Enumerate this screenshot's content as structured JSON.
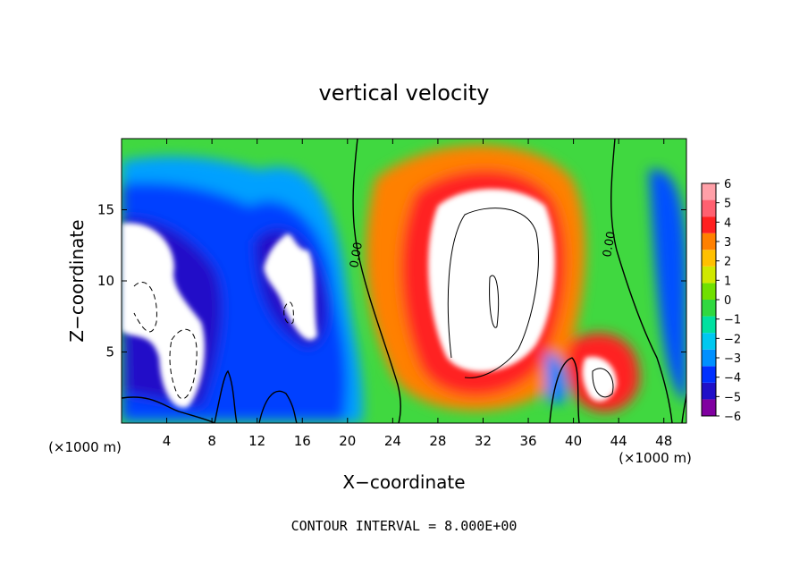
{
  "chart_data": {
    "type": "heatmap",
    "title": "vertical velocity",
    "xlabel": "X−coordinate",
    "ylabel": "Z−coordinate",
    "x_unit_label": "(×1000 m)",
    "xlim": [
      0,
      50
    ],
    "ylim": [
      0,
      20
    ],
    "x_ticks": [
      4,
      8,
      12,
      16,
      20,
      24,
      28,
      32,
      36,
      40,
      44,
      48
    ],
    "y_ticks": [
      5,
      10,
      15
    ],
    "colorbar": {
      "levels": [
        -6,
        -5,
        -4,
        -3,
        -2,
        -1,
        0,
        1,
        2,
        3,
        4,
        5,
        6
      ],
      "labels": [
        "6",
        "5",
        "4",
        "3",
        "2",
        "1",
        "0",
        "−1",
        "−2",
        "−3",
        "−4",
        "−5",
        "−6"
      ],
      "colors": [
        "#8000a0",
        "#2010c8",
        "#0030ff",
        "#0090ff",
        "#00c8f0",
        "#00e0a0",
        "#30d840",
        "#70e000",
        "#d0e800",
        "#ffc000",
        "#ff8000",
        "#ff2020",
        "#ff6070",
        "#ffa0a8"
      ]
    },
    "contour_labels": [
      "0.00",
      "0.00"
    ],
    "annotation": "CONTOUR INTERVAL = 8.000E+00",
    "grid": false,
    "legend_position": "right"
  }
}
